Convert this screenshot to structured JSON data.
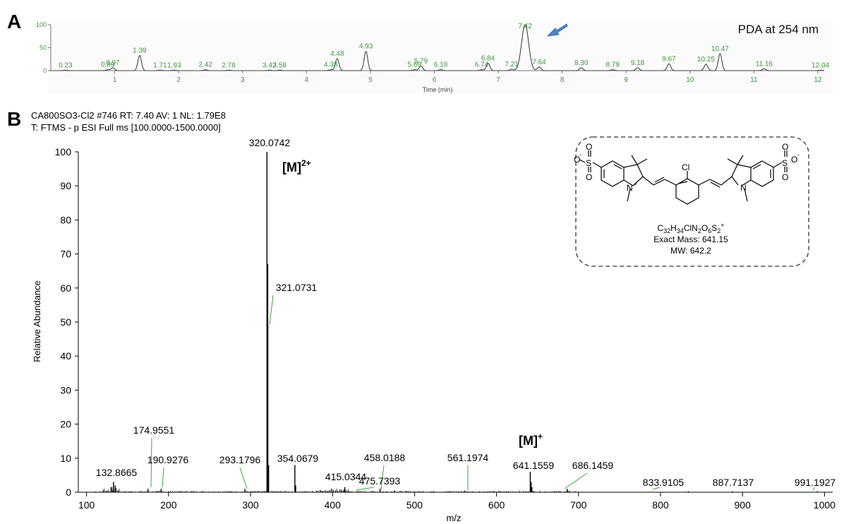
{
  "panel_a": {
    "letter": "A",
    "title": "PDA at 254 nm",
    "xlabel": "Time (min)",
    "colors": {
      "trace": "#444444",
      "labels": "#3a9a3a",
      "arrow": "#4a86c8"
    }
  },
  "panel_b": {
    "letter": "B",
    "header_line1": "CA800SO3-Cl2 #746 RT: 7.40 AV: 1 NL: 1.79E8",
    "header_line2": "T: FTMS - p ESI Full ms [100.0000-1500.0000]",
    "xlabel": "m/z",
    "ylabel": "Relative Abundance",
    "annotation_m2": "[M]",
    "annotation_m2_sup": "2+",
    "annotation_m1": "[M]",
    "annotation_m1_sup": "+",
    "structure": {
      "formula_parts": [
        "C",
        "32",
        "H",
        "34",
        "ClN",
        "2",
        "O",
        "6",
        "S",
        "2",
        "+"
      ],
      "exact_mass": "Exact Mass: 641.15",
      "mw": "MW: 642.2",
      "labels": {
        "cl": "Cl",
        "n": "N",
        "nplus": "N",
        "plus": "+",
        "s": "S",
        "o": "O",
        "minus": "-"
      }
    },
    "colors": {
      "spectrum": "#000000",
      "leader": "#33aa33"
    }
  },
  "chart_data": [
    {
      "type": "line",
      "title": "PDA at 254 nm",
      "xlabel": "Time (min)",
      "ylabel": "",
      "xlim": [
        0,
        12.1
      ],
      "ylim": [
        0,
        100
      ],
      "xticks": [
        1,
        2,
        3,
        4,
        5,
        6,
        7,
        8,
        9,
        10,
        11,
        12
      ],
      "yticks": [
        0,
        50,
        100
      ],
      "peaks": [
        {
          "label": "0.23",
          "x": 0.23,
          "y": 1
        },
        {
          "label": "0.89",
          "x": 0.89,
          "y": 2
        },
        {
          "label": "0.97",
          "x": 0.97,
          "y": 6
        },
        {
          "label": "1.39",
          "x": 1.39,
          "y": 33
        },
        {
          "label": "1.71",
          "x": 1.71,
          "y": 1
        },
        {
          "label": "1.93",
          "x": 1.93,
          "y": 1
        },
        {
          "label": "2.42",
          "x": 2.42,
          "y": 2
        },
        {
          "label": "2.78",
          "x": 2.78,
          "y": 1
        },
        {
          "label": "3.42",
          "x": 3.42,
          "y": 1
        },
        {
          "label": "3.58",
          "x": 3.58,
          "y": 1
        },
        {
          "label": "4.38",
          "x": 4.38,
          "y": 2
        },
        {
          "label": "4.48",
          "x": 4.48,
          "y": 26
        },
        {
          "label": "4.93",
          "x": 4.93,
          "y": 42
        },
        {
          "label": "5.69",
          "x": 5.69,
          "y": 2
        },
        {
          "label": "5.79",
          "x": 5.79,
          "y": 10
        },
        {
          "label": "6.10",
          "x": 6.1,
          "y": 2
        },
        {
          "label": "6.74",
          "x": 6.74,
          "y": 2
        },
        {
          "label": "6.84",
          "x": 6.84,
          "y": 16
        },
        {
          "label": "7.21",
          "x": 7.21,
          "y": 3
        },
        {
          "label": "7.42",
          "x": 7.42,
          "y": 100
        },
        {
          "label": "7.64",
          "x": 7.64,
          "y": 8
        },
        {
          "label": "8.30",
          "x": 8.3,
          "y": 6
        },
        {
          "label": "8.79",
          "x": 8.79,
          "y": 2
        },
        {
          "label": "9.18",
          "x": 9.18,
          "y": 6
        },
        {
          "label": "9.67",
          "x": 9.67,
          "y": 15
        },
        {
          "label": "10.25",
          "x": 10.25,
          "y": 14
        },
        {
          "label": "10.47",
          "x": 10.47,
          "y": 37
        },
        {
          "label": "11.16",
          "x": 11.16,
          "y": 4
        },
        {
          "label": "12.04",
          "x": 12.04,
          "y": 1
        }
      ]
    },
    {
      "type": "bar",
      "title": "",
      "xlabel": "m/z",
      "ylabel": "Relative Abundance",
      "xlim": [
        90,
        1010
      ],
      "ylim": [
        0,
        100
      ],
      "xticks": [
        100,
        200,
        300,
        400,
        500,
        600,
        700,
        800,
        900,
        1000
      ],
      "yticks": [
        0,
        10,
        20,
        30,
        40,
        50,
        60,
        70,
        80,
        90,
        100
      ],
      "peaks": [
        {
          "mz": 132.8665,
          "y": 3,
          "label": "132.8665"
        },
        {
          "mz": 174.9551,
          "y": 1,
          "label": "174.9551"
        },
        {
          "mz": 190.9276,
          "y": 1,
          "label": "190.9276"
        },
        {
          "mz": 293.1796,
          "y": 1,
          "label": "293.1796"
        },
        {
          "mz": 320.0742,
          "y": 100,
          "label": "320.0742"
        },
        {
          "mz": 321.0731,
          "y": 49,
          "label": "321.0731"
        },
        {
          "mz": 354.0679,
          "y": 8,
          "label": "354.0679"
        },
        {
          "mz": 415.0344,
          "y": 1.5,
          "label": "415.0344"
        },
        {
          "mz": 458.0188,
          "y": 1,
          "label": "458.0188"
        },
        {
          "mz": 475.7393,
          "y": 0.5,
          "label": "475.7393"
        },
        {
          "mz": 561.1974,
          "y": 0.5,
          "label": "561.1974"
        },
        {
          "mz": 641.1559,
          "y": 6,
          "label": "641.1559"
        },
        {
          "mz": 686.1459,
          "y": 1,
          "label": "686.1459"
        },
        {
          "mz": 833.9105,
          "y": 0.3,
          "label": "833.9105"
        },
        {
          "mz": 887.7137,
          "y": 0.3,
          "label": "887.7137"
        },
        {
          "mz": 991.1927,
          "y": 0.3,
          "label": "991.1927"
        }
      ],
      "minor_peaks": [
        {
          "mz": 321.0,
          "y": 67
        },
        {
          "mz": 322.07,
          "y": 8
        },
        {
          "mz": 355.07,
          "y": 2
        },
        {
          "mz": 642.16,
          "y": 3
        },
        {
          "mz": 643.15,
          "y": 1.5
        },
        {
          "mz": 134.9,
          "y": 2
        },
        {
          "mz": 130.8,
          "y": 1.5
        }
      ]
    }
  ]
}
